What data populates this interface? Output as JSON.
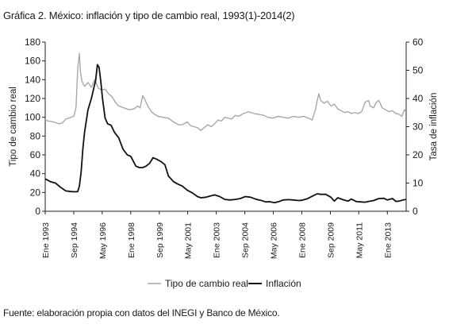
{
  "title": "Gráfica 2. México: inflación y tipo de cambio real, 1993(1)-2014(2)",
  "source": "Fuente: elaboración propia con datos del INEGI y Banco de México.",
  "chart_data": {
    "type": "line",
    "title": "Gráfica 2. México: inflación y tipo de cambio real, 1993(1)-2014(2)",
    "ylabel": "Tipo de cambio real",
    "y2label": "Tasa de inflación",
    "ylim": [
      0,
      180
    ],
    "y2lim": [
      0,
      60
    ],
    "yticks": [
      0,
      20,
      40,
      60,
      80,
      100,
      120,
      140,
      160,
      180
    ],
    "y2ticks": [
      0,
      10,
      20,
      30,
      40,
      50,
      60
    ],
    "xlim": [
      1993.0,
      2014.1
    ],
    "xticks": [
      {
        "label": "Ene 1993",
        "x": 1993.0
      },
      {
        "label": "Sep 1994",
        "x": 1994.67
      },
      {
        "label": "May 1996",
        "x": 1996.33
      },
      {
        "label": "Ene 1998",
        "x": 1998.0
      },
      {
        "label": "Sep 1999",
        "x": 1999.67
      },
      {
        "label": "May 2001",
        "x": 2001.33
      },
      {
        "label": "Ene 2003",
        "x": 2003.0
      },
      {
        "label": "Sep 2004",
        "x": 2004.67
      },
      {
        "label": "May 2006",
        "x": 2006.33
      },
      {
        "label": "Ene 2008",
        "x": 2008.0
      },
      {
        "label": "Sep 2009",
        "x": 2009.67
      },
      {
        "label": "May 2011",
        "x": 2011.33
      },
      {
        "label": "Ene 2013",
        "x": 2013.0
      }
    ],
    "grid": false,
    "legend_position": "bottom",
    "series": [
      {
        "name": "Tipo de cambio real",
        "axis": "left",
        "color": "#a8a8a8",
        "points": [
          [
            1993.0,
            97
          ],
          [
            1993.2,
            96
          ],
          [
            1993.5,
            95
          ],
          [
            1993.8,
            93
          ],
          [
            1994.0,
            94
          ],
          [
            1994.2,
            98
          ],
          [
            1994.5,
            100
          ],
          [
            1994.67,
            101
          ],
          [
            1994.8,
            110
          ],
          [
            1994.9,
            152
          ],
          [
            1995.0,
            168
          ],
          [
            1995.05,
            150
          ],
          [
            1995.15,
            138
          ],
          [
            1995.3,
            133
          ],
          [
            1995.5,
            137
          ],
          [
            1995.7,
            132
          ],
          [
            1995.9,
            140
          ],
          [
            1996.1,
            131
          ],
          [
            1996.3,
            129
          ],
          [
            1996.5,
            130
          ],
          [
            1996.7,
            125
          ],
          [
            1996.9,
            122
          ],
          [
            1997.1,
            116
          ],
          [
            1997.3,
            112
          ],
          [
            1997.6,
            110
          ],
          [
            1997.9,
            108
          ],
          [
            1998.2,
            109
          ],
          [
            1998.4,
            112
          ],
          [
            1998.55,
            110
          ],
          [
            1998.7,
            123
          ],
          [
            1998.85,
            118
          ],
          [
            1999.0,
            112
          ],
          [
            1999.2,
            106
          ],
          [
            1999.4,
            103
          ],
          [
            1999.6,
            101
          ],
          [
            1999.9,
            100
          ],
          [
            2000.2,
            99
          ],
          [
            2000.5,
            95
          ],
          [
            2000.8,
            92
          ],
          [
            2001.0,
            92
          ],
          [
            2001.3,
            95
          ],
          [
            2001.5,
            91
          ],
          [
            2001.7,
            90
          ],
          [
            2001.9,
            89
          ],
          [
            2002.1,
            86
          ],
          [
            2002.3,
            89
          ],
          [
            2002.5,
            92
          ],
          [
            2002.7,
            90
          ],
          [
            2002.9,
            93
          ],
          [
            2003.1,
            97
          ],
          [
            2003.3,
            96
          ],
          [
            2003.5,
            100
          ],
          [
            2003.7,
            99
          ],
          [
            2003.9,
            98
          ],
          [
            2004.1,
            102
          ],
          [
            2004.3,
            101
          ],
          [
            2004.6,
            104
          ],
          [
            2004.9,
            106
          ],
          [
            2005.2,
            104
          ],
          [
            2005.5,
            103
          ],
          [
            2005.8,
            102
          ],
          [
            2006.0,
            100
          ],
          [
            2006.3,
            99
          ],
          [
            2006.6,
            101
          ],
          [
            2006.9,
            100
          ],
          [
            2007.2,
            99
          ],
          [
            2007.5,
            101
          ],
          [
            2007.8,
            100
          ],
          [
            2008.1,
            101
          ],
          [
            2008.4,
            99
          ],
          [
            2008.6,
            97
          ],
          [
            2008.8,
            108
          ],
          [
            2008.9,
            118
          ],
          [
            2009.0,
            125
          ],
          [
            2009.1,
            118
          ],
          [
            2009.3,
            115
          ],
          [
            2009.5,
            117
          ],
          [
            2009.7,
            112
          ],
          [
            2009.9,
            114
          ],
          [
            2010.1,
            109
          ],
          [
            2010.3,
            107
          ],
          [
            2010.5,
            105
          ],
          [
            2010.7,
            106
          ],
          [
            2010.9,
            104
          ],
          [
            2011.1,
            105
          ],
          [
            2011.3,
            104
          ],
          [
            2011.5,
            106
          ],
          [
            2011.7,
            116
          ],
          [
            2011.9,
            118
          ],
          [
            2012.0,
            112
          ],
          [
            2012.2,
            110
          ],
          [
            2012.35,
            116
          ],
          [
            2012.5,
            118
          ],
          [
            2012.7,
            110
          ],
          [
            2012.9,
            108
          ],
          [
            2013.1,
            106
          ],
          [
            2013.3,
            107
          ],
          [
            2013.5,
            104
          ],
          [
            2013.7,
            103
          ],
          [
            2013.85,
            101
          ],
          [
            2014.0,
            108
          ],
          [
            2014.1,
            106
          ]
        ]
      },
      {
        "name": "Inflación",
        "axis": "right",
        "color": "#111111",
        "points": [
          [
            1993.0,
            11.5
          ],
          [
            1993.3,
            10.5
          ],
          [
            1993.6,
            10.0
          ],
          [
            1993.9,
            8.5
          ],
          [
            1994.2,
            7.2
          ],
          [
            1994.5,
            7.0
          ],
          [
            1994.75,
            6.9
          ],
          [
            1994.9,
            7.0
          ],
          [
            1995.0,
            9.0
          ],
          [
            1995.1,
            14
          ],
          [
            1995.2,
            22
          ],
          [
            1995.3,
            28
          ],
          [
            1995.5,
            36
          ],
          [
            1995.7,
            40
          ],
          [
            1995.85,
            44
          ],
          [
            1995.95,
            46.5
          ],
          [
            1996.05,
            52
          ],
          [
            1996.15,
            51
          ],
          [
            1996.25,
            46
          ],
          [
            1996.35,
            40
          ],
          [
            1996.5,
            33
          ],
          [
            1996.65,
            31
          ],
          [
            1996.85,
            30.5
          ],
          [
            1997.05,
            28
          ],
          [
            1997.3,
            26
          ],
          [
            1997.55,
            22
          ],
          [
            1997.8,
            20
          ],
          [
            1998.0,
            19.5
          ],
          [
            1998.3,
            16
          ],
          [
            1998.5,
            15.5
          ],
          [
            1998.7,
            15.5
          ],
          [
            1998.9,
            16
          ],
          [
            1999.1,
            17
          ],
          [
            1999.3,
            19
          ],
          [
            1999.5,
            18.5
          ],
          [
            1999.8,
            17.5
          ],
          [
            2000.0,
            16.5
          ],
          [
            2000.2,
            12.5
          ],
          [
            2000.5,
            10.5
          ],
          [
            2000.8,
            9.5
          ],
          [
            2001.0,
            9.0
          ],
          [
            2001.3,
            7.5
          ],
          [
            2001.6,
            6.5
          ],
          [
            2001.9,
            5.2
          ],
          [
            2002.1,
            4.8
          ],
          [
            2002.4,
            5.0
          ],
          [
            2002.7,
            5.5
          ],
          [
            2002.9,
            5.8
          ],
          [
            2003.2,
            5.2
          ],
          [
            2003.5,
            4.2
          ],
          [
            2003.8,
            4.0
          ],
          [
            2004.1,
            4.2
          ],
          [
            2004.4,
            4.5
          ],
          [
            2004.7,
            5.2
          ],
          [
            2005.0,
            5.0
          ],
          [
            2005.3,
            4.3
          ],
          [
            2005.6,
            3.9
          ],
          [
            2005.9,
            3.3
          ],
          [
            2006.1,
            3.4
          ],
          [
            2006.4,
            3.0
          ],
          [
            2006.7,
            3.5
          ],
          [
            2006.9,
            4.0
          ],
          [
            2007.2,
            4.1
          ],
          [
            2007.5,
            4.0
          ],
          [
            2007.8,
            3.8
          ],
          [
            2008.0,
            3.9
          ],
          [
            2008.3,
            4.4
          ],
          [
            2008.6,
            5.3
          ],
          [
            2008.9,
            6.2
          ],
          [
            2009.1,
            6.0
          ],
          [
            2009.4,
            6.0
          ],
          [
            2009.7,
            5.0
          ],
          [
            2009.9,
            3.6
          ],
          [
            2010.1,
            4.8
          ],
          [
            2010.4,
            4.1
          ],
          [
            2010.7,
            3.6
          ],
          [
            2010.9,
            4.3
          ],
          [
            2011.2,
            3.4
          ],
          [
            2011.5,
            3.3
          ],
          [
            2011.7,
            3.2
          ],
          [
            2011.9,
            3.5
          ],
          [
            2012.2,
            3.8
          ],
          [
            2012.5,
            4.5
          ],
          [
            2012.8,
            4.6
          ],
          [
            2013.0,
            4.0
          ],
          [
            2013.3,
            4.5
          ],
          [
            2013.5,
            3.5
          ],
          [
            2013.7,
            3.6
          ],
          [
            2013.9,
            4.0
          ],
          [
            2014.1,
            4.2
          ]
        ]
      }
    ]
  }
}
